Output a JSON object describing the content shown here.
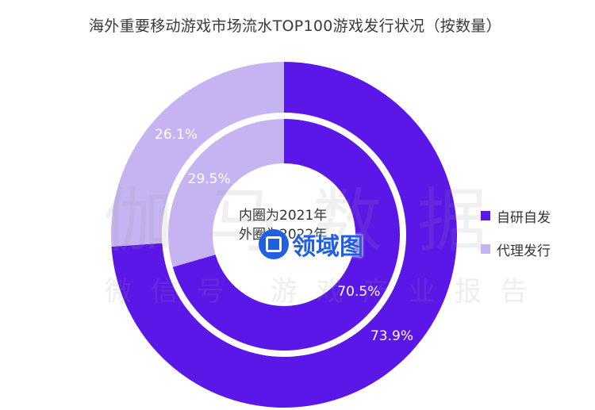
{
  "chart_data": {
    "type": "donut",
    "title": "海外重要移动游戏市场流水TOP100游戏发行状况（按数量）",
    "categories": [
      "自研自发",
      "代理发行"
    ],
    "colors": [
      "#5b16e8",
      "#c6b4f2"
    ],
    "rings": [
      {
        "name": "外圈为2022年",
        "values": [
          73.9,
          26.1
        ],
        "labels": [
          "73.9%",
          "26.1%"
        ]
      },
      {
        "name": "内圈为2021年",
        "values": [
          70.5,
          29.5
        ],
        "labels": [
          "70.5%",
          "29.5%"
        ]
      }
    ],
    "legend_position": "right"
  },
  "watermark": {
    "main": "伽马数据",
    "sub": "微信号 游戏产业报告"
  },
  "logo": {
    "icon": "logo-icon",
    "text": "领域图"
  }
}
